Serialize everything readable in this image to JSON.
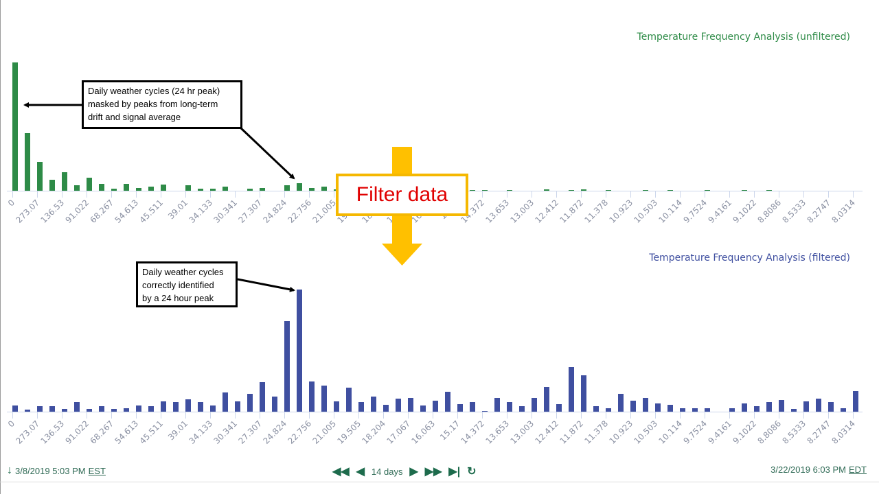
{
  "chart_data": [
    {
      "type": "bar",
      "title": "Temperature Frequency Analysis (unfiltered)",
      "color": "#2e8b47",
      "tick_labels": [
        "0",
        "273.07",
        "136.53",
        "91.022",
        "68.267",
        "54.613",
        "45.511",
        "39.01",
        "34.133",
        "30.341",
        "27.307",
        "24.824",
        "22.756",
        "21.005",
        "19.505",
        "18.204",
        "17.067",
        "16.063",
        "15.17",
        "14.372",
        "13.653",
        "13.003",
        "12.412",
        "11.872",
        "11.378",
        "10.923",
        "10.503",
        "10.114",
        "9.7524",
        "9.4161",
        "9.1022",
        "8.8086",
        "8.5333",
        "8.2747",
        "8.0314"
      ],
      "values": [
        187,
        84,
        42,
        16,
        27,
        8,
        19,
        10,
        3,
        10,
        4,
        6,
        9,
        0,
        8,
        3,
        3,
        6,
        0,
        3,
        4,
        0,
        8,
        11,
        4,
        6,
        2,
        2,
        2,
        2,
        2,
        2,
        2,
        1,
        1,
        1,
        1,
        1,
        1,
        0,
        1,
        0,
        0,
        2,
        0,
        1,
        2,
        0,
        1,
        0,
        0,
        1,
        0,
        1,
        0,
        0,
        1,
        0,
        0,
        1,
        0,
        1,
        0,
        0,
        0,
        0,
        0,
        0,
        0
      ],
      "grid": false
    },
    {
      "type": "bar",
      "title": "Temperature Frequency Analysis (filtered)",
      "color": "#3f4fa0",
      "tick_labels": [
        "0",
        "273.07",
        "136.53",
        "91.022",
        "68.267",
        "54.613",
        "45.511",
        "39.01",
        "34.133",
        "30.341",
        "27.307",
        "24.824",
        "22.756",
        "21.005",
        "19.505",
        "18.204",
        "17.067",
        "16.063",
        "15.17",
        "14.372",
        "13.653",
        "13.003",
        "12.412",
        "11.872",
        "11.378",
        "10.923",
        "10.503",
        "10.114",
        "9.7524",
        "9.4161",
        "9.1022",
        "8.8086",
        "8.5333",
        "8.2747",
        "8.0314"
      ],
      "values": [
        9,
        3,
        8,
        8,
        4,
        14,
        4,
        8,
        4,
        5,
        9,
        8,
        15,
        14,
        18,
        14,
        9,
        28,
        15,
        26,
        43,
        22,
        132,
        178,
        44,
        38,
        15,
        35,
        14,
        22,
        10,
        19,
        20,
        9,
        16,
        29,
        11,
        14,
        1,
        20,
        14,
        8,
        20,
        36,
        11,
        65,
        53,
        8,
        5,
        26,
        16,
        20,
        12,
        10,
        5,
        5,
        5,
        0,
        5,
        12,
        8,
        14,
        17,
        4,
        15,
        19,
        14,
        5,
        30
      ],
      "grid": false
    }
  ],
  "annotations": {
    "note1": "Daily weather cycles (24 hr peak)\nmasked by peaks from long-term\ndrift and signal average",
    "note2": "Daily weather cycles\ncorrectly identified\nby a 24 hour peak",
    "filter_label": "Filter data",
    "arrow_color": "#ffc000",
    "filter_border_color": "#f5b800",
    "filter_text_color": "#e00000"
  },
  "footer": {
    "start_date": "3/8/2019 5:03 PM",
    "start_tz": "EST",
    "range": "14 days",
    "end_date": "3/22/2019 6:03 PM",
    "end_tz": "EDT",
    "icons": [
      "arrow-down-icon",
      "first-icon",
      "prev-icon",
      "next-icon",
      "last-icon",
      "end-icon",
      "refresh-icon"
    ]
  }
}
